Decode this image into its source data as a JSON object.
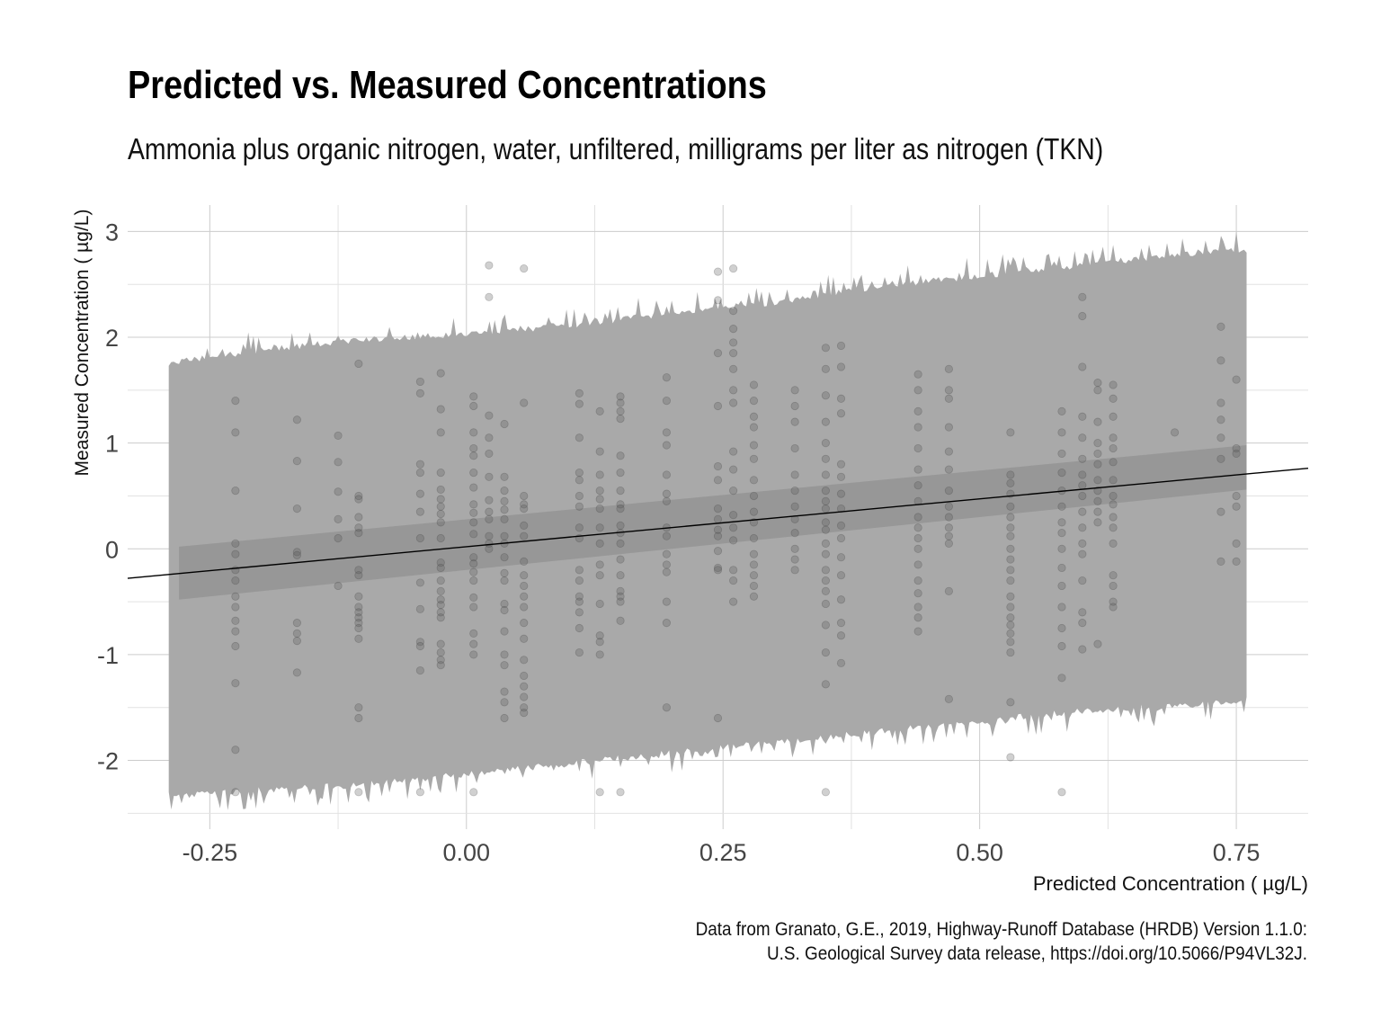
{
  "chart_data": {
    "type": "scatter",
    "title": "Predicted vs. Measured Concentrations",
    "subtitle": "Ammonia plus organic nitrogen, water, unfiltered, milligrams per liter as nitrogen (TKN)",
    "xlabel": "Predicted Concentration ( µg/L)",
    "ylabel": "Measured Concentration ( µg/L)",
    "caption": [
      "Data from Granato, G.E., 2019, Highway-Runoff Database (HRDB) Version 1.1.0:",
      "U.S. Geological Survey data release, https://doi.org/10.5066/P94VL32J."
    ],
    "xlim": [
      -0.33,
      0.82
    ],
    "ylim": [
      -2.65,
      3.25
    ],
    "x_ticks": [
      -0.25,
      0.0,
      0.25,
      0.5,
      0.75
    ],
    "x_tick_labels": [
      "-0.25",
      "0.00",
      "0.25",
      "0.50",
      "0.75"
    ],
    "y_ticks": [
      -2,
      -1,
      0,
      1,
      2,
      3
    ],
    "y_tick_labels": [
      "-2",
      "-1",
      "0",
      "1",
      "2",
      "3"
    ],
    "grid": true,
    "colors": {
      "prediction_band": "#a9a9a9",
      "confidence_band": "#8c8c8c",
      "points": "#555555",
      "fit_line": "#000000",
      "grid": "#cccccc"
    },
    "fit_line": {
      "intercept": 0.02,
      "slope": 0.905
    },
    "confidence_band": {
      "x": [
        -0.28,
        0.76
      ],
      "lower": [
        -0.48,
        0.56
      ],
      "upper": [
        0.02,
        0.98
      ]
    },
    "prediction_band": {
      "x": [
        -0.29,
        -0.2,
        -0.1,
        0.0,
        0.1,
        0.2,
        0.3,
        0.4,
        0.5,
        0.6,
        0.7,
        0.76
      ],
      "upper": [
        1.73,
        1.85,
        1.95,
        2.0,
        2.08,
        2.2,
        2.3,
        2.45,
        2.55,
        2.65,
        2.75,
        2.8
      ],
      "lower": [
        -2.3,
        -2.25,
        -2.2,
        -2.1,
        -2.0,
        -1.9,
        -1.8,
        -1.7,
        -1.6,
        -1.5,
        -1.45,
        -1.4
      ]
    },
    "points": [
      {
        "x": -0.225,
        "y": [
          1.4,
          1.1,
          0.55,
          0.05,
          -0.05,
          -0.2,
          -0.3,
          -0.45,
          -0.55,
          -0.68,
          -0.78,
          -0.92,
          -1.27,
          -1.9,
          -2.3
        ]
      },
      {
        "x": -0.165,
        "y": [
          1.22,
          0.83,
          0.38,
          -0.03,
          -0.06,
          -0.7,
          -0.8,
          -0.87,
          -1.17
        ]
      },
      {
        "x": -0.125,
        "y": [
          1.07,
          0.82,
          0.54,
          0.28,
          0.1,
          -0.35
        ]
      },
      {
        "x": -0.105,
        "y": [
          1.75,
          0.5,
          0.47,
          0.3,
          0.2,
          0.15,
          -0.2,
          -0.25,
          -0.45,
          -0.55,
          -0.6,
          -0.65,
          -0.7,
          -0.75,
          -0.85,
          -1.5,
          -1.6,
          -2.3
        ]
      },
      {
        "x": -0.045,
        "y": [
          1.58,
          1.47,
          0.8,
          0.72,
          0.52,
          0.35,
          0.1,
          -0.32,
          -0.57,
          -0.88,
          -0.92,
          -1.15,
          -2.3
        ]
      },
      {
        "x": -0.025,
        "y": [
          1.66,
          1.32,
          1.1,
          0.72,
          0.56,
          0.47,
          0.4,
          0.33,
          0.25,
          0.1,
          -0.13,
          -0.18,
          -0.3,
          -0.4,
          -0.48,
          -0.53,
          -0.6,
          -0.65,
          -0.9,
          -0.98,
          -1.05,
          -1.1
        ]
      },
      {
        "x": 0.007,
        "y": [
          1.44,
          1.35,
          1.1,
          0.95,
          0.88,
          0.72,
          0.58,
          0.42,
          0.34,
          0.25,
          0.14,
          -0.08,
          -0.14,
          -0.22,
          -0.3,
          -0.46,
          -0.55,
          -0.8,
          -0.9,
          -1.0,
          -2.3
        ]
      },
      {
        "x": 0.022,
        "y": [
          1.26,
          1.05,
          0.9,
          0.68,
          0.46,
          0.35,
          0.28,
          0.12,
          0.05,
          0.0,
          2.68,
          2.38
        ]
      },
      {
        "x": 0.037,
        "y": [
          1.18,
          0.68,
          0.55,
          0.45,
          0.37,
          0.28,
          0.12,
          0.05,
          -0.08,
          -0.23,
          -0.3,
          -0.52,
          -0.58,
          -0.78,
          -1.0,
          -1.1,
          -1.35,
          -1.45,
          -1.6
        ]
      },
      {
        "x": 0.056,
        "y": [
          1.38,
          0.5,
          0.42,
          0.38,
          0.22,
          0.12,
          -0.12,
          -0.25,
          -0.35,
          -0.45,
          -0.55,
          -0.7,
          -0.85,
          -1.05,
          -1.2,
          -1.3,
          -1.4,
          -1.5,
          -1.55,
          2.65
        ]
      },
      {
        "x": 0.11,
        "y": [
          1.47,
          1.37,
          1.05,
          0.72,
          0.65,
          0.5,
          0.4,
          0.2,
          0.1,
          -0.2,
          -0.3,
          -0.45,
          -0.5,
          -0.6,
          -0.75,
          -0.98
        ]
      },
      {
        "x": 0.13,
        "y": [
          1.3,
          0.92,
          0.7,
          0.55,
          0.47,
          0.38,
          0.2,
          0.05,
          -0.15,
          -0.25,
          -0.52,
          -0.82,
          -0.88,
          -1.0,
          -2.3
        ]
      },
      {
        "x": 0.15,
        "y": [
          1.44,
          1.38,
          1.3,
          1.23,
          0.88,
          0.72,
          0.55,
          0.42,
          0.38,
          0.22,
          0.15,
          0.05,
          -0.1,
          -0.25,
          -0.4,
          -0.45,
          -0.5,
          -0.68,
          -2.3
        ]
      },
      {
        "x": 0.195,
        "y": [
          1.62,
          1.4,
          1.1,
          0.98,
          0.7,
          0.52,
          0.45,
          0.2,
          0.12,
          -0.05,
          -0.15,
          -0.22,
          -0.5,
          -0.7,
          -1.5
        ]
      },
      {
        "x": 0.245,
        "y": [
          1.85,
          1.35,
          0.78,
          0.65,
          0.38,
          0.28,
          0.18,
          0.12,
          -0.02,
          -0.18,
          -0.2,
          -1.6,
          2.62,
          2.35
        ]
      },
      {
        "x": 0.26,
        "y": [
          2.25,
          2.08,
          1.95,
          1.85,
          1.7,
          1.5,
          1.38,
          0.92,
          0.75,
          0.55,
          0.32,
          0.2,
          0.08,
          -0.2,
          -0.3,
          -0.5,
          2.65
        ]
      },
      {
        "x": 0.28,
        "y": [
          1.55,
          1.4,
          1.25,
          1.15,
          0.98,
          0.85,
          0.65,
          0.5,
          0.35,
          0.25,
          0.1,
          -0.05,
          -0.15,
          -0.25,
          -0.35,
          -0.45
        ]
      },
      {
        "x": 0.32,
        "y": [
          1.5,
          1.35,
          1.2,
          0.95,
          0.7,
          0.55,
          0.4,
          0.28,
          0.15,
          0.0,
          -0.1,
          -0.2
        ]
      },
      {
        "x": 0.35,
        "y": [
          1.9,
          1.7,
          1.45,
          1.2,
          1.0,
          0.85,
          0.7,
          0.55,
          0.45,
          0.38,
          0.25,
          0.18,
          0.05,
          -0.05,
          -0.2,
          -0.3,
          -0.4,
          -0.52,
          -0.72,
          -0.98,
          -1.28,
          -2.3
        ]
      },
      {
        "x": 0.365,
        "y": [
          1.92,
          1.72,
          1.42,
          1.28,
          0.8,
          0.68,
          0.52,
          0.38,
          0.22,
          0.1,
          -0.08,
          -0.25,
          -0.48,
          -0.7,
          -0.82,
          -1.08
        ]
      },
      {
        "x": 0.44,
        "y": [
          1.65,
          1.5,
          1.3,
          1.15,
          0.95,
          0.75,
          0.6,
          0.45,
          0.3,
          0.2,
          0.1,
          0.0,
          -0.15,
          -0.3,
          -0.42,
          -0.55,
          -0.65,
          -0.78
        ]
      },
      {
        "x": 0.47,
        "y": [
          1.7,
          1.5,
          1.42,
          1.15,
          0.92,
          0.75,
          0.55,
          0.4,
          0.3,
          0.2,
          0.12,
          0.05,
          -0.4,
          -1.42
        ]
      },
      {
        "x": 0.53,
        "y": [
          1.1,
          0.7,
          0.62,
          0.52,
          0.4,
          0.3,
          0.2,
          0.12,
          0.0,
          -0.1,
          -0.2,
          -0.3,
          -0.45,
          -0.55,
          -0.65,
          -0.72,
          -0.8,
          -0.88,
          -0.98,
          -1.45,
          -1.97
        ]
      },
      {
        "x": 0.58,
        "y": [
          1.3,
          1.1,
          0.9,
          0.72,
          0.55,
          0.4,
          0.25,
          0.15,
          0.0,
          -0.18,
          -0.35,
          -0.55,
          -0.75,
          -0.92,
          -1.22,
          -2.3
        ]
      },
      {
        "x": 0.6,
        "y": [
          2.38,
          2.2,
          1.72,
          1.25,
          1.05,
          0.85,
          0.7,
          0.6,
          0.5,
          0.35,
          0.2,
          0.05,
          -0.05,
          -0.3,
          -0.6,
          -0.7,
          -0.95
        ]
      },
      {
        "x": 0.615,
        "y": [
          1.57,
          1.5,
          1.2,
          1.0,
          0.9,
          0.8,
          0.65,
          0.55,
          0.45,
          0.35,
          0.25,
          -0.9
        ]
      },
      {
        "x": 0.63,
        "y": [
          1.55,
          1.42,
          1.25,
          1.05,
          0.95,
          0.82,
          0.65,
          0.5,
          0.42,
          0.3,
          0.2,
          0.05,
          -0.25,
          -0.35,
          -0.5,
          -0.55
        ]
      },
      {
        "x": 0.735,
        "y": [
          2.1,
          1.78,
          1.38,
          1.22,
          1.05,
          0.85,
          0.35,
          -0.12
        ]
      },
      {
        "x": 0.75,
        "y": [
          1.6,
          0.95,
          0.9,
          0.5,
          0.4,
          0.05,
          -0.12
        ]
      },
      {
        "x": 0.69,
        "y": [
          1.1
        ]
      }
    ]
  }
}
